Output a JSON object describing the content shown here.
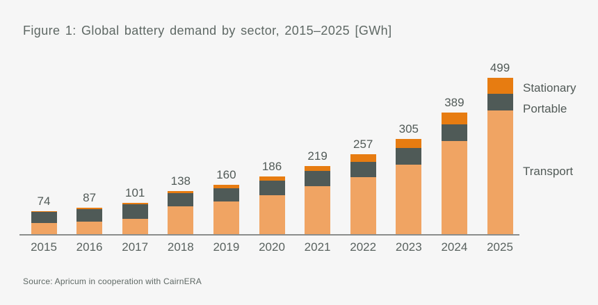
{
  "title": "Figure 1: Global battery demand by sector, 2015–2025 [GWh]",
  "source": "Source: Apricum in cooperation with CairnERA",
  "legend": {
    "stationary": "Stationary",
    "portable": "Portable",
    "transport": "Transport"
  },
  "colors": {
    "transport": "#f0a463",
    "portable": "#4f5a57",
    "stationary": "#e77c11",
    "background": "#f6f6f6",
    "axis": "#8a8d8c",
    "text": "#59625f"
  },
  "chart_data": {
    "type": "bar",
    "stacked": true,
    "title": "Figure 1: Global battery demand by sector, 2015–2025 [GWh]",
    "unit": "GWh",
    "categories": [
      "2015",
      "2016",
      "2017",
      "2018",
      "2019",
      "2020",
      "2021",
      "2022",
      "2023",
      "2024",
      "2025"
    ],
    "series": [
      {
        "name": "Transport",
        "color_key": "transport",
        "values": [
          36,
          43,
          51,
          88,
          107,
          126,
          155,
          184,
          223,
          298,
          395
        ]
      },
      {
        "name": "Portable",
        "color_key": "portable",
        "values": [
          35,
          40,
          46,
          43,
          42,
          47,
          49,
          49,
          53,
          53,
          53
        ]
      },
      {
        "name": "Stationary",
        "color_key": "stationary",
        "values": [
          3,
          4,
          4,
          7,
          11,
          13,
          15,
          24,
          29,
          38,
          51
        ]
      }
    ],
    "totals": [
      74,
      87,
      101,
      138,
      160,
      186,
      219,
      257,
      305,
      389,
      499
    ],
    "ylim": [
      0,
      499
    ],
    "grid": false,
    "legend_position": "right",
    "total_labels_shown": true
  }
}
